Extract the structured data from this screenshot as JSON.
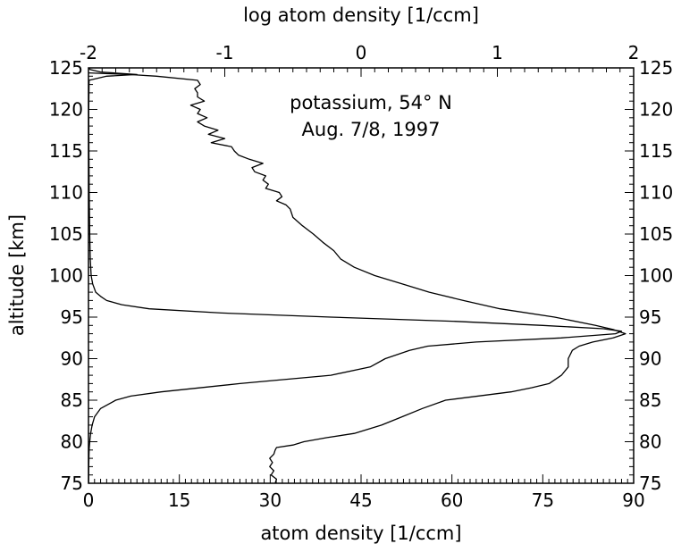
{
  "chart_data": {
    "type": "line",
    "annotation_lines": [
      "potassium, 54° N",
      "Aug. 7/8, 1997"
    ],
    "xlabel_bottom": "atom density [1/ccm]",
    "xlabel_top": "log atom density [1/ccm]",
    "ylabel": "altitude [km]",
    "xlim_bottom": [
      0,
      90
    ],
    "xlim_top": [
      -2,
      2
    ],
    "ylim": [
      75,
      125
    ],
    "xticks_bottom": [
      0,
      15,
      30,
      45,
      60,
      75,
      90
    ],
    "xticks_top": [
      -2,
      -1,
      0,
      1,
      2
    ],
    "yticks": [
      75,
      80,
      85,
      90,
      95,
      100,
      105,
      110,
      115,
      120,
      125
    ],
    "grid": false,
    "series": [
      {
        "axis": "bottom",
        "altitude": [
          75,
          77,
          79,
          80,
          81,
          82,
          83,
          84,
          85,
          85.5,
          86,
          87,
          88,
          89,
          90,
          90.5,
          91,
          91.5,
          92,
          92.5,
          93,
          93.3,
          93.6,
          94,
          94.5,
          95,
          95.5,
          96,
          96.5,
          97,
          97.5,
          98,
          99,
          100,
          102,
          105,
          110,
          115,
          120,
          123.5,
          124,
          124.2,
          124.5,
          124.8,
          125
        ],
        "density": [
          0.03,
          0.05,
          0.1,
          0.2,
          0.35,
          0.6,
          1.0,
          2.0,
          4.5,
          7.0,
          12.0,
          25.0,
          40.0,
          46.5,
          49.0,
          51.0,
          53.0,
          56.0,
          64.0,
          78.0,
          87.0,
          88.0,
          85.0,
          75.0,
          60.0,
          40.0,
          22.0,
          10.0,
          5.5,
          3.0,
          2.0,
          1.2,
          0.7,
          0.45,
          0.3,
          0.2,
          0.12,
          0.08,
          0.05,
          0.1,
          3.0,
          8.0,
          2.0,
          0.3,
          0.05
        ]
      },
      {
        "axis": "top",
        "altitude": [
          75,
          75.5,
          76,
          76.5,
          77,
          77.5,
          78,
          78.5,
          79,
          79.3,
          79.6,
          80,
          80.5,
          81,
          82,
          83,
          84,
          85,
          86,
          86.5,
          87,
          88,
          89,
          90,
          91,
          91.5,
          92,
          92.5,
          93,
          93.5,
          94,
          95,
          96,
          97,
          98,
          99,
          100,
          101,
          102,
          103,
          104,
          105,
          106,
          107,
          108,
          108.5,
          109,
          109.5,
          110,
          110.5,
          111,
          111.5,
          112,
          112.5,
          113,
          113.5,
          114,
          114.5,
          115,
          115.5,
          116,
          116.5,
          117,
          117.5,
          118,
          118.5,
          119,
          119.5,
          120,
          120.5,
          121,
          121.5,
          122,
          122.5,
          123,
          123.5,
          124,
          124.2,
          124.4
        ],
        "log_density": [
          -0.63,
          -0.62,
          -0.66,
          -0.64,
          -0.67,
          -0.65,
          -0.67,
          -0.64,
          -0.63,
          -0.62,
          -0.5,
          -0.42,
          -0.25,
          -0.05,
          0.15,
          0.3,
          0.45,
          0.62,
          1.1,
          1.25,
          1.38,
          1.47,
          1.52,
          1.52,
          1.55,
          1.6,
          1.7,
          1.85,
          1.94,
          1.85,
          1.72,
          1.42,
          1.02,
          0.75,
          0.5,
          0.3,
          0.1,
          -0.05,
          -0.15,
          -0.2,
          -0.28,
          -0.35,
          -0.43,
          -0.5,
          -0.52,
          -0.55,
          -0.62,
          -0.58,
          -0.6,
          -0.7,
          -0.68,
          -0.72,
          -0.7,
          -0.78,
          -0.8,
          -0.72,
          -0.82,
          -0.9,
          -0.93,
          -0.95,
          -1.1,
          -1.0,
          -1.12,
          -1.05,
          -1.15,
          -1.2,
          -1.13,
          -1.2,
          -1.18,
          -1.25,
          -1.15,
          -1.2,
          -1.2,
          -1.22,
          -1.18,
          -1.2,
          -1.5,
          -1.7,
          -2.0
        ]
      }
    ]
  }
}
